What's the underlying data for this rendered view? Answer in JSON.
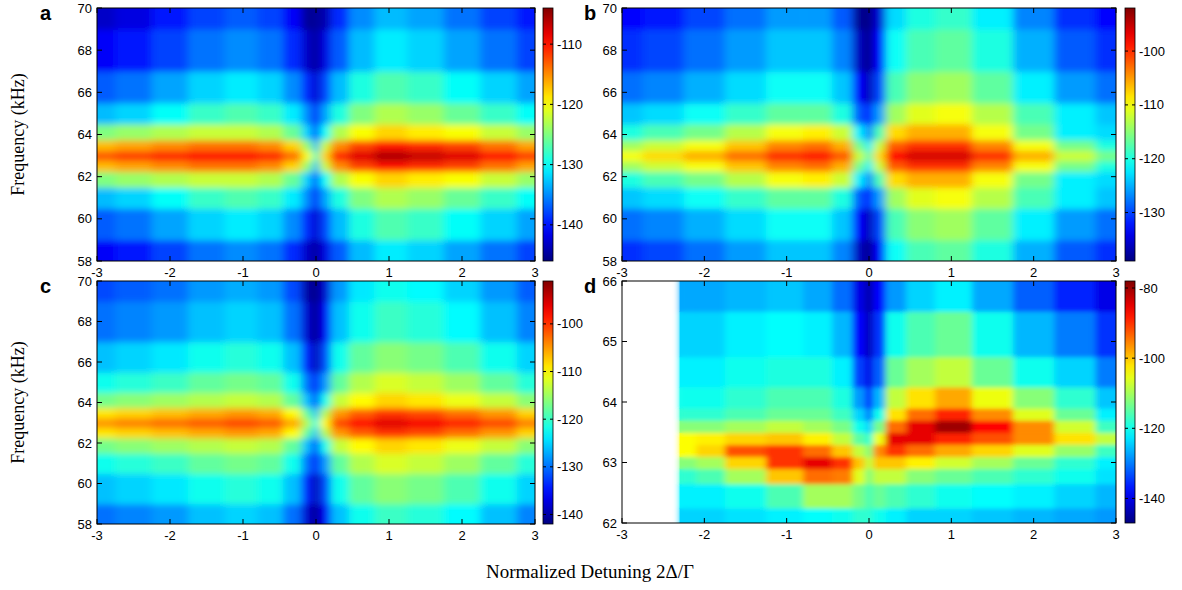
{
  "x_label": "Normalized Detuning 2Δ/Γ",
  "chart_data": [
    {
      "type": "heatmap",
      "panel": "a",
      "y_label": "Frequency (kHz)",
      "xlim": [
        -3,
        3
      ],
      "xticks": [
        -3,
        -2,
        -1,
        0,
        1,
        2,
        3
      ],
      "ylim": [
        58,
        70
      ],
      "yticks": [
        58,
        60,
        62,
        64,
        66,
        68,
        70
      ],
      "colorbar_range": [
        -146,
        -104
      ],
      "colorbar_ticks": [
        -110,
        -120,
        -130,
        -140
      ],
      "x": [
        -3,
        -2.5,
        -2,
        -1.5,
        -1,
        -0.6,
        -0.3,
        -0.1,
        0,
        0.1,
        0.3,
        0.6,
        1,
        1.5,
        2,
        2.5,
        3
      ],
      "y": [
        58,
        60,
        61,
        62,
        62.5,
        63,
        63.5,
        64,
        65,
        66,
        68,
        70
      ],
      "cells": [
        [
          -141,
          -140,
          -138,
          -136,
          -135,
          -136,
          -139,
          -143,
          -145,
          -142,
          -137,
          -133,
          -131,
          -132,
          -134,
          -136,
          -138
        ],
        [
          -137,
          -136,
          -134,
          -132,
          -131,
          -132,
          -135,
          -139,
          -143,
          -138,
          -133,
          -129,
          -127,
          -128,
          -130,
          -132,
          -134
        ],
        [
          -133,
          -132,
          -130,
          -128,
          -127,
          -128,
          -131,
          -135,
          -141,
          -134,
          -129,
          -125,
          -123,
          -124,
          -126,
          -128,
          -130
        ],
        [
          -125,
          -124,
          -123,
          -122,
          -122,
          -123,
          -126,
          -132,
          -139,
          -130,
          -123,
          -120,
          -118,
          -119,
          -120,
          -122,
          -124
        ],
        [
          -117,
          -116,
          -115,
          -114,
          -114,
          -115,
          -118,
          -124,
          -133,
          -122,
          -115,
          -112,
          -110,
          -111,
          -112,
          -114,
          -116
        ],
        [
          -113,
          -112,
          -111,
          -110,
          -110,
          -111,
          -114,
          -120,
          -128,
          -118,
          -111,
          -108,
          -106,
          -107,
          -108,
          -110,
          -112
        ],
        [
          -117,
          -116,
          -115,
          -114,
          -114,
          -115,
          -118,
          -124,
          -133,
          -122,
          -115,
          -112,
          -110,
          -111,
          -112,
          -114,
          -116
        ],
        [
          -125,
          -124,
          -123,
          -122,
          -122,
          -123,
          -126,
          -132,
          -139,
          -130,
          -123,
          -120,
          -118,
          -119,
          -120,
          -122,
          -124
        ],
        [
          -133,
          -132,
          -130,
          -128,
          -127,
          -128,
          -131,
          -135,
          -141,
          -134,
          -129,
          -125,
          -123,
          -124,
          -126,
          -128,
          -130
        ],
        [
          -137,
          -136,
          -134,
          -132,
          -131,
          -132,
          -135,
          -139,
          -143,
          -138,
          -133,
          -129,
          -127,
          -128,
          -130,
          -132,
          -134
        ],
        [
          -141,
          -140,
          -138,
          -136,
          -135,
          -136,
          -139,
          -143,
          -145,
          -142,
          -137,
          -133,
          -131,
          -132,
          -134,
          -136,
          -138
        ],
        [
          -143,
          -142,
          -140,
          -138,
          -137,
          -138,
          -141,
          -145,
          -145,
          -144,
          -139,
          -135,
          -133,
          -134,
          -136,
          -138,
          -140
        ]
      ]
    },
    {
      "type": "heatmap",
      "panel": "b",
      "xlim": [
        -3,
        3
      ],
      "xticks": [
        -3,
        -2,
        -1,
        0,
        1,
        2,
        3
      ],
      "ylim": [
        58,
        70
      ],
      "yticks": [
        58,
        60,
        62,
        64,
        66,
        68,
        70
      ],
      "colorbar_range": [
        -139,
        -92
      ],
      "colorbar_ticks": [
        -100,
        -110,
        -120,
        -130
      ],
      "x": [
        -3,
        -2.5,
        -2,
        -1.5,
        -1,
        -0.6,
        -0.3,
        -0.1,
        0,
        0.1,
        0.3,
        0.6,
        1,
        1.5,
        2,
        2.5,
        3
      ],
      "y": [
        58,
        60,
        61,
        62,
        62.5,
        63,
        63.5,
        64,
        65,
        66,
        68,
        70
      ],
      "cells": [
        [
          -131,
          -130,
          -128,
          -126,
          -124,
          -124,
          -127,
          -136,
          -139,
          -133,
          -121,
          -118,
          -117,
          -120,
          -125,
          -129,
          -131
        ],
        [
          -128,
          -127,
          -125,
          -123,
          -121,
          -121,
          -124,
          -133,
          -137,
          -130,
          -118,
          -115,
          -114,
          -117,
          -122,
          -126,
          -128
        ],
        [
          -124,
          -123,
          -121,
          -119,
          -117,
          -117,
          -120,
          -129,
          -133,
          -126,
          -114,
          -111,
          -110,
          -113,
          -118,
          -122,
          -124
        ],
        [
          -120,
          -118,
          -116,
          -113,
          -110,
          -109,
          -112,
          -122,
          -128,
          -118,
          -108,
          -106,
          -106,
          -110,
          -116,
          -122,
          -123
        ],
        [
          -114,
          -112,
          -110,
          -107,
          -104,
          -103,
          -106,
          -116,
          -122,
          -112,
          -102,
          -100,
          -100,
          -104,
          -110,
          -116,
          -120
        ],
        [
          -110,
          -108,
          -106,
          -103,
          -100,
          -99,
          -102,
          -112,
          -118,
          -108,
          -98,
          -96,
          -96,
          -100,
          -106,
          -112,
          -116
        ],
        [
          -114,
          -112,
          -110,
          -107,
          -104,
          -103,
          -106,
          -116,
          -122,
          -112,
          -102,
          -100,
          -100,
          -104,
          -110,
          -116,
          -120
        ],
        [
          -120,
          -118,
          -116,
          -113,
          -110,
          -109,
          -112,
          -122,
          -128,
          -118,
          -108,
          -106,
          -106,
          -110,
          -116,
          -122,
          -123
        ],
        [
          -124,
          -123,
          -121,
          -119,
          -117,
          -117,
          -120,
          -129,
          -133,
          -126,
          -114,
          -111,
          -110,
          -113,
          -118,
          -122,
          -124
        ],
        [
          -128,
          -127,
          -125,
          -123,
          -121,
          -121,
          -124,
          -133,
          -137,
          -130,
          -118,
          -115,
          -114,
          -117,
          -122,
          -126,
          -128
        ],
        [
          -131,
          -130,
          -128,
          -126,
          -124,
          -124,
          -127,
          -136,
          -139,
          -133,
          -121,
          -118,
          -117,
          -120,
          -125,
          -129,
          -131
        ],
        [
          -133,
          -132,
          -130,
          -128,
          -126,
          -126,
          -129,
          -138,
          -139,
          -135,
          -123,
          -120,
          -119,
          -122,
          -127,
          -131,
          -133
        ]
      ]
    },
    {
      "type": "heatmap",
      "panel": "c",
      "y_label": "Frequency (kHz)",
      "xlim": [
        -3,
        3
      ],
      "xticks": [
        -3,
        -2,
        -1,
        0,
        1,
        2,
        3
      ],
      "ylim": [
        58,
        70
      ],
      "yticks": [
        58,
        60,
        62,
        64,
        66,
        68,
        70
      ],
      "colorbar_range": [
        -142,
        -91
      ],
      "colorbar_ticks": [
        -100,
        -110,
        -120,
        -130,
        -140
      ],
      "x": [
        -3,
        -2.5,
        -2,
        -1.5,
        -1,
        -0.6,
        -0.3,
        -0.1,
        0,
        0.1,
        0.3,
        0.6,
        1,
        1.5,
        2,
        2.5,
        3
      ],
      "y": [
        58,
        60,
        61,
        62,
        62.5,
        63,
        63.5,
        64,
        65,
        66,
        68,
        70
      ],
      "cells": [
        [
          -130,
          -129,
          -128,
          -126,
          -125,
          -126,
          -130,
          -138,
          -142,
          -136,
          -126,
          -122,
          -120,
          -121,
          -123,
          -126,
          -129
        ],
        [
          -126,
          -125,
          -124,
          -122,
          -121,
          -122,
          -126,
          -134,
          -140,
          -132,
          -122,
          -118,
          -116,
          -117,
          -119,
          -122,
          -125
        ],
        [
          -122,
          -121,
          -120,
          -118,
          -117,
          -118,
          -122,
          -130,
          -136,
          -128,
          -118,
          -114,
          -112,
          -113,
          -115,
          -118,
          -121
        ],
        [
          -117,
          -116,
          -115,
          -114,
          -113,
          -114,
          -118,
          -126,
          -134,
          -122,
          -113,
          -110,
          -108,
          -109,
          -111,
          -113,
          -116
        ],
        [
          -109,
          -108,
          -107,
          -106,
          -105,
          -106,
          -110,
          -118,
          -126,
          -114,
          -105,
          -102,
          -100,
          -101,
          -103,
          -105,
          -108
        ],
        [
          -105,
          -104,
          -103,
          -102,
          -101,
          -102,
          -106,
          -114,
          -122,
          -110,
          -101,
          -98,
          -96,
          -97,
          -99,
          -101,
          -104
        ],
        [
          -109,
          -108,
          -107,
          -106,
          -105,
          -106,
          -110,
          -118,
          -126,
          -114,
          -105,
          -102,
          -100,
          -101,
          -103,
          -105,
          -108
        ],
        [
          -117,
          -116,
          -115,
          -114,
          -113,
          -114,
          -118,
          -126,
          -134,
          -122,
          -113,
          -110,
          -108,
          -109,
          -111,
          -113,
          -116
        ],
        [
          -122,
          -121,
          -120,
          -118,
          -117,
          -118,
          -122,
          -130,
          -136,
          -128,
          -118,
          -114,
          -112,
          -113,
          -115,
          -118,
          -121
        ],
        [
          -126,
          -125,
          -124,
          -122,
          -121,
          -122,
          -126,
          -134,
          -140,
          -132,
          -122,
          -118,
          -116,
          -117,
          -119,
          -122,
          -125
        ],
        [
          -130,
          -129,
          -128,
          -126,
          -125,
          -126,
          -130,
          -138,
          -142,
          -136,
          -126,
          -122,
          -120,
          -121,
          -123,
          -126,
          -129
        ],
        [
          -132,
          -131,
          -130,
          -128,
          -127,
          -128,
          -132,
          -140,
          -142,
          -138,
          -128,
          -124,
          -122,
          -123,
          -125,
          -128,
          -131
        ]
      ]
    },
    {
      "type": "heatmap",
      "panel": "d",
      "xlim": [
        -3,
        3
      ],
      "xticks": [
        -3,
        -2,
        -1,
        0,
        1,
        2,
        3
      ],
      "ylim": [
        62,
        66
      ],
      "yticks": [
        62,
        63,
        64,
        65,
        66
      ],
      "colorbar_range": [
        -147,
        -78
      ],
      "colorbar_ticks": [
        -80,
        -100,
        -120,
        -140
      ],
      "x": [
        -2.2,
        -2,
        -1.5,
        -1,
        -0.6,
        -0.3,
        -0.1,
        0,
        0.1,
        0.3,
        0.6,
        1,
        1.5,
        2,
        2.5,
        3
      ],
      "y": [
        62,
        62.5,
        62.8,
        63,
        63.2,
        63.4,
        63.6,
        63.8,
        64,
        64.5,
        65,
        66
      ],
      "cells": [
        [
          -124,
          -124,
          -123,
          -122,
          -121,
          -120,
          -118,
          -118,
          -120,
          -122,
          -124,
          -124,
          -125,
          -126,
          -127,
          -128
        ],
        [
          -122,
          -122,
          -120,
          -116,
          -110,
          -110,
          -113,
          -116,
          -114,
          -116,
          -118,
          -120,
          -121,
          -122,
          -124,
          -126
        ],
        [
          -118,
          -116,
          -110,
          -100,
          -94,
          -95,
          -106,
          -112,
          -108,
          -108,
          -112,
          -114,
          -116,
          -118,
          -120,
          -123
        ],
        [
          -112,
          -110,
          -101,
          -90,
          -85,
          -90,
          -100,
          -108,
          -100,
          -100,
          -103,
          -107,
          -110,
          -114,
          -118,
          -122
        ],
        [
          -104,
          -101,
          -92,
          -90,
          -94,
          -100,
          -108,
          -112,
          -96,
          -90,
          -94,
          -98,
          -101,
          -106,
          -111,
          -117
        ],
        [
          -104,
          -103,
          -101,
          -100,
          -103,
          -108,
          -115,
          -118,
          -105,
          -85,
          -85,
          -89,
          -92,
          -96,
          -102,
          -108
        ],
        [
          -112,
          -112,
          -110,
          -108,
          -110,
          -113,
          -120,
          -124,
          -113,
          -94,
          -85,
          -80,
          -87,
          -96,
          -107,
          -117
        ],
        [
          -118,
          -118,
          -116,
          -114,
          -114,
          -117,
          -124,
          -130,
          -120,
          -102,
          -94,
          -89,
          -96,
          -106,
          -114,
          -122
        ],
        [
          -120,
          -120,
          -118,
          -116,
          -116,
          -119,
          -128,
          -135,
          -126,
          -108,
          -102,
          -98,
          -105,
          -112,
          -118,
          -125
        ],
        [
          -122,
          -122,
          -120,
          -119,
          -119,
          -122,
          -134,
          -140,
          -132,
          -114,
          -110,
          -108,
          -114,
          -120,
          -124,
          -130
        ],
        [
          -124,
          -124,
          -122,
          -121,
          -122,
          -126,
          -138,
          -143,
          -135,
          -120,
          -116,
          -114,
          -120,
          -126,
          -130,
          -135
        ],
        [
          -127,
          -127,
          -126,
          -125,
          -127,
          -131,
          -140,
          -144,
          -138,
          -128,
          -124,
          -122,
          -127,
          -132,
          -136,
          -140
        ]
      ]
    }
  ]
}
